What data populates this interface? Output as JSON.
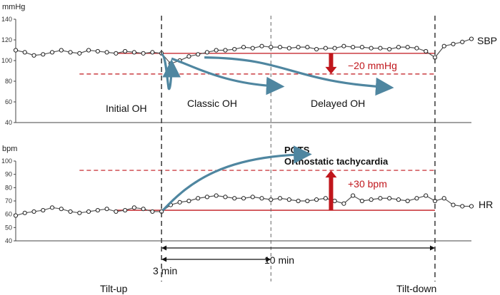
{
  "chart_data": [
    {
      "type": "scatter",
      "name_label": "SBP",
      "ylabel": "mmHg",
      "y_ticks": [
        40,
        60,
        80,
        100,
        120,
        140
      ],
      "ylim": [
        40,
        140
      ],
      "xlim": [
        0,
        25
      ],
      "grid": false,
      "baseline": 107,
      "threshold": 87,
      "change_label": "−20 mmHg",
      "annotations": [
        "Initial OH",
        "Classic OH",
        "Delayed OH"
      ],
      "x": [
        0,
        0.5,
        1,
        1.5,
        2,
        2.5,
        3,
        3.5,
        4,
        4.5,
        5,
        5.5,
        6,
        6.5,
        7,
        7.5,
        8,
        8.5,
        9,
        9.5,
        10,
        10.5,
        11,
        11.5,
        12,
        12.5,
        13,
        13.5,
        14,
        14.5,
        15,
        15.5,
        16,
        16.5,
        17,
        17.5,
        18,
        18.5,
        19,
        19.5,
        20,
        20.5,
        21,
        21.5,
        22,
        22.5,
        23,
        23.5,
        24,
        24.5,
        25
      ],
      "y": [
        110,
        108,
        105,
        106,
        108,
        110,
        108,
        107,
        110,
        109,
        108,
        107,
        109,
        108,
        107,
        108,
        107,
        97,
        100,
        104,
        106,
        108,
        110,
        110,
        111,
        113,
        112,
        114,
        113,
        113,
        112,
        113,
        113,
        111,
        112,
        112,
        114,
        113,
        113,
        112,
        112,
        111,
        113,
        113,
        112,
        109,
        103,
        114,
        116,
        118,
        121
      ]
    },
    {
      "type": "scatter",
      "name_label": "HR",
      "ylabel": "bpm",
      "y_ticks": [
        40,
        50,
        60,
        70,
        80,
        90,
        100
      ],
      "ylim": [
        40,
        100
      ],
      "xlim": [
        0,
        25
      ],
      "grid": false,
      "baseline": 63,
      "threshold": 93,
      "change_label": "+30 bpm",
      "annotations": [
        "POTS",
        "Orthostatic tachycardia"
      ],
      "x": [
        0,
        0.5,
        1,
        1.5,
        2,
        2.5,
        3,
        3.5,
        4,
        4.5,
        5,
        5.5,
        6,
        6.5,
        7,
        7.5,
        8,
        8.5,
        9,
        9.5,
        10,
        10.5,
        11,
        11.5,
        12,
        12.5,
        13,
        13.5,
        14,
        14.5,
        15,
        15.5,
        16,
        16.5,
        17,
        17.5,
        18,
        18.5,
        19,
        19.5,
        20,
        20.5,
        21,
        21.5,
        22,
        22.5,
        23,
        23.5,
        24,
        24.5,
        25
      ],
      "y": [
        59,
        61,
        62,
        63,
        65,
        64,
        62,
        61,
        62,
        63,
        64,
        62,
        63,
        65,
        64,
        62,
        62,
        67,
        69,
        70,
        72,
        73,
        74,
        73,
        72,
        72,
        73,
        72,
        71,
        72,
        71,
        70,
        70,
        71,
        72,
        70,
        68,
        74,
        70,
        71,
        72,
        72,
        71,
        70,
        72,
        74,
        70,
        72,
        67,
        66,
        66
      ]
    }
  ],
  "timeline": {
    "tilt_up_x": 8,
    "mark_3min_x": 14,
    "tilt_down_x": 23,
    "span_3min_label": "3 min",
    "span_10min_label": "10 min",
    "tilt_up_label": "Tilt-up",
    "tilt_down_label": "Tilt-down"
  },
  "colors": {
    "red": "#c0161c",
    "arrow": "#4f86a0",
    "dash": "#555555",
    "marker": "#222222"
  }
}
